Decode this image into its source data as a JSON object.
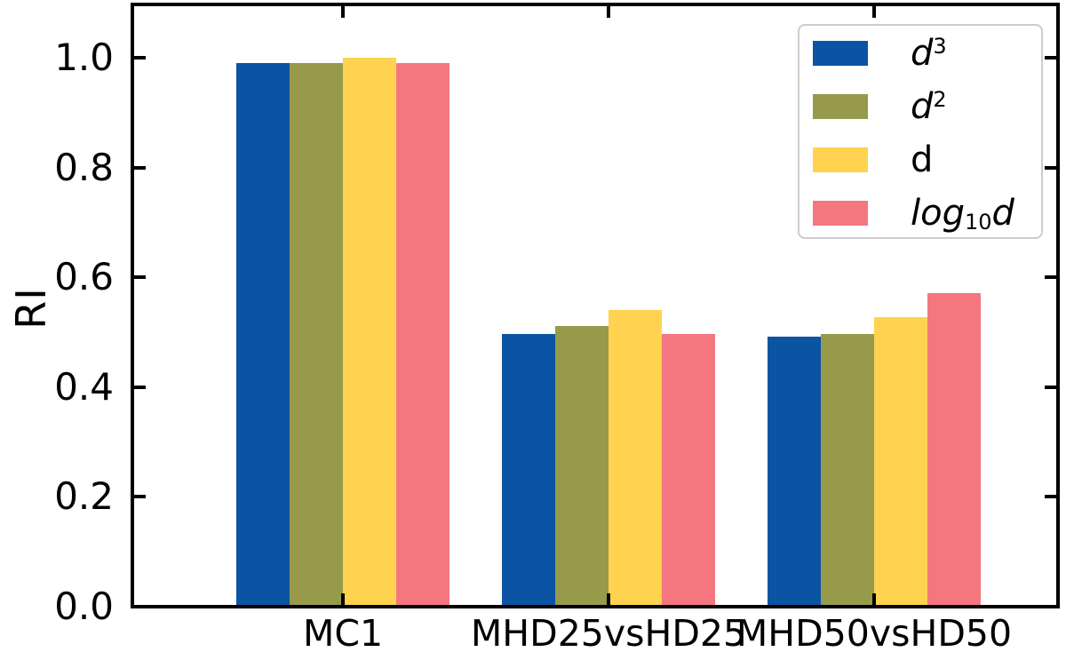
{
  "chart_data": {
    "type": "bar",
    "title": "",
    "xlabel": "",
    "ylabel": "RI",
    "categories": [
      "MC1",
      "MHD25vsHD25",
      "MHD50vsHD50"
    ],
    "series": [
      {
        "name": "d^3",
        "color": "#0b54a3",
        "values": [
          0.99,
          0.496,
          0.492
        ],
        "label_parts": [
          {
            "text": "d",
            "italic": true
          },
          {
            "text": "3",
            "sup": true
          }
        ]
      },
      {
        "name": "d^2",
        "color": "#97994b",
        "values": [
          0.99,
          0.511,
          0.497
        ],
        "label_parts": [
          {
            "text": "d",
            "italic": true
          },
          {
            "text": "2",
            "sup": true
          }
        ]
      },
      {
        "name": "d",
        "color": "#ffd24f",
        "values": [
          1.0,
          0.54,
          0.528
        ],
        "label_parts": [
          {
            "text": "d"
          }
        ]
      },
      {
        "name": "log10 d",
        "color": "#f4777f",
        "values": [
          0.99,
          0.497,
          0.572
        ],
        "label_parts": [
          {
            "text": "log",
            "italic": true
          },
          {
            "text": "10",
            "sub": true
          },
          {
            "text": "d",
            "italic": true
          }
        ]
      }
    ],
    "yticks": [
      "0.0",
      "0.2",
      "0.4",
      "0.6",
      "0.8",
      "1.0"
    ],
    "ylim": [
      0,
      1.09
    ],
    "grid": false,
    "legend_position": "upper right"
  },
  "colors": {
    "axis": "#000000",
    "legend_border": "#cccccc",
    "background": "#ffffff"
  }
}
